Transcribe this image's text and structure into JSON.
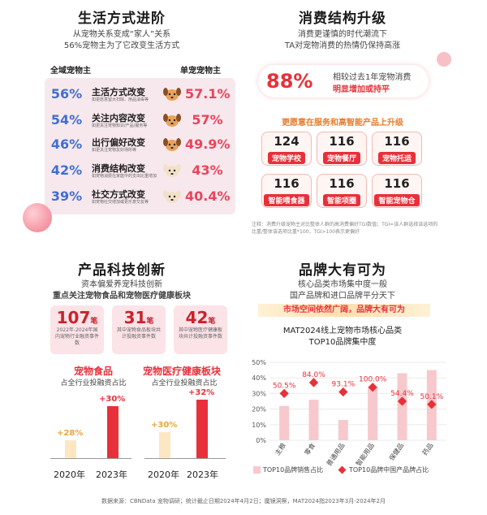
{
  "q1": {
    "title": "生活方式进阶",
    "sub1": "从宠物关系变成“家人”关系",
    "sub2": "56%宠物主为了它改变生活方式",
    "left_header": "全域宠物主",
    "right_header": "单宠宠物主",
    "rows": [
      {
        "left": "56%",
        "title": "主活方式改变",
        "note": "如更愿意留大扫除、用品消毒等",
        "right": "57.1%"
      },
      {
        "left": "54%",
        "title": "关注内容改变",
        "note": "如更关注宠物知识/产品/服务等",
        "right": "57%"
      },
      {
        "left": "46%",
        "title": "出行偏好改变",
        "note": "如更关注宠物友好场所等",
        "right": "49.9%"
      },
      {
        "left": "42%",
        "title": "消费结构改变",
        "note": "如宠物消费在家庭中的支出比重增加",
        "right": "43%"
      },
      {
        "left": "39%",
        "title": "社交方式改变",
        "note": "如宠物社交增加或更乐意交友等",
        "right": "40.4%"
      }
    ]
  },
  "q2": {
    "title": "消费结构升级",
    "sub1": "消费更谨慎的时代潮流下",
    "sub2": "TA对宠物消费的热情仍保持高涨",
    "pct": "88%",
    "pct_line1": "相较过去1年宠物消费",
    "pct_line2": "明显增加或持平",
    "upgrade_title": "更愿意在服务和高智能产品上升级",
    "tiles": [
      {
        "num": "124",
        "label": "宠物学校"
      },
      {
        "num": "116",
        "label": "宠物餐厅"
      },
      {
        "num": "116",
        "label": "宠物托运"
      },
      {
        "num": "116",
        "label": "智能喂食器"
      },
      {
        "num": "116",
        "label": "智能项圈"
      },
      {
        "num": "116",
        "label": "智能宠物仓"
      }
    ],
    "note": "注释：消费升级宠物主对比整体人群的高消费偏好TGI数值；TGI=该人群选择该选项的比重/整体该选项比重*100，TGI>100表示更偏好"
  },
  "q3": {
    "title": "产品科技创新",
    "sub1": "资本偏爱养宠科技创新",
    "sub2": "重点关注宠物食品和宠物医疗健康板块",
    "cards": [
      {
        "num": "107",
        "unit": "笔",
        "desc": "2022年-2024年国内宠物行业融资事件数"
      },
      {
        "num": "31",
        "unit": "笔",
        "desc": "其中宠物食品板块共计投融资事件数"
      },
      {
        "num": "42",
        "unit": "笔",
        "desc": "其中宠物医疗健康板块共计投融资事件数"
      }
    ],
    "food_title": "宠物食品",
    "food_sub": "占全行业投融资占比",
    "medical_title": "宠物医疗健康板块",
    "medical_sub": "占全行业投融资占比",
    "food_values": {
      "2020": "+28%",
      "2023": "+30%"
    },
    "medical_values": {
      "2020": "+30%",
      "2023": "+32%"
    },
    "years": [
      "2020年",
      "2023年"
    ]
  },
  "q4": {
    "title": "品牌大有可为",
    "sub1": "核心品类市场集中度一般",
    "sub2": "国产品牌和进口品牌平分天下",
    "banner": "市场空间依然广阔，品牌大有可为",
    "chart_title1": "MAT2024线上宠物市场核心品类",
    "chart_title2": "TOP10品牌集中度",
    "legend_sales": "TOP10品牌销售占比",
    "legend_domestic": "TOP10品牌中国产品牌占比"
  },
  "source": "数据来源：CBNData 宠物调研；统计截止日期2024年4月2日；魔镜洞察，MAT2024指2023年3月-2024年2月",
  "chart_data": {
    "type": "bar",
    "title": "MAT2024线上宠物市场核心品类 TOP10品牌集中度",
    "categories": [
      "主粮",
      "零食",
      "普通用品",
      "智能用品",
      "保健品",
      "药品"
    ],
    "series": [
      {
        "name": "TOP10品牌销售占比",
        "type": "bar",
        "values": [
          22,
          26,
          13,
          34,
          43,
          45
        ]
      },
      {
        "name": "TOP10品牌中国产品牌占比",
        "type": "scatter",
        "labels": [
          "50.5%",
          "84.0%",
          "93.1%",
          "100.0%",
          "54.4%",
          "50.1%"
        ],
        "values": [
          30,
          37,
          31,
          34,
          25,
          23
        ]
      }
    ],
    "ylim": [
      0,
      50
    ],
    "yticks": [
      "0%",
      "10%",
      "20%",
      "30%",
      "40%",
      "50%"
    ],
    "colors": {
      "bar": "#f7c9cc",
      "marker": "#e8303a"
    }
  }
}
